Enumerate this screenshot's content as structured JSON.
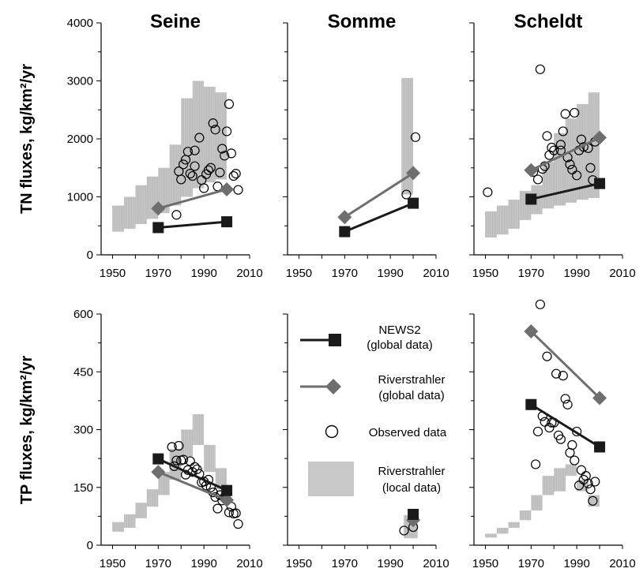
{
  "colors": {
    "news2": "#1a1a1a",
    "riverstrahler_global": "#6e6e6e",
    "local_band": "#c8c8c8",
    "local_band_line": "#a8a8a8"
  },
  "y_labels": [
    "TN fluxes, kg/km²/yr",
    "TP fluxes, kg/km²/yr"
  ],
  "legend": {
    "items": [
      {
        "key": "news2",
        "line1": "NEWS2",
        "line2": "(global data)"
      },
      {
        "key": "riverstrahler_global",
        "line1": "Riverstrahler",
        "line2": "(global data)"
      },
      {
        "key": "observed",
        "line1": "Observed data",
        "line2": ""
      },
      {
        "key": "local",
        "line1": "Riverstrahler",
        "line2": "(local data)"
      }
    ]
  },
  "chart_data": [
    {
      "type": "scatter",
      "title": "Seine",
      "ylabel": "TN fluxes, kg/km²/yr",
      "xlim": [
        1945,
        2010
      ],
      "ylim": [
        0,
        4000
      ],
      "xticks": [
        1950,
        1970,
        1990,
        2010
      ],
      "yticks": [
        0,
        1000,
        2000,
        3000,
        4000
      ],
      "news2": [
        [
          1970,
          470
        ],
        [
          2000,
          570
        ]
      ],
      "riverstrahler_global": [
        [
          1970,
          800
        ],
        [
          2000,
          1130
        ]
      ],
      "observed": [
        [
          1978,
          690
        ],
        [
          1979,
          1440
        ],
        [
          1980,
          1300
        ],
        [
          1981,
          1560
        ],
        [
          1982,
          1640
        ],
        [
          1983,
          1780
        ],
        [
          1984,
          1400
        ],
        [
          1985,
          1360
        ],
        [
          1986,
          1530
        ],
        [
          1986,
          1800
        ],
        [
          1988,
          2020
        ],
        [
          1989,
          1290
        ],
        [
          1990,
          1150
        ],
        [
          1991,
          1390
        ],
        [
          1992,
          1460
        ],
        [
          1993,
          1500
        ],
        [
          1994,
          2270
        ],
        [
          1995,
          2160
        ],
        [
          1996,
          1180
        ],
        [
          1997,
          1420
        ],
        [
          1998,
          1830
        ],
        [
          1999,
          1710
        ],
        [
          2000,
          2130
        ],
        [
          2001,
          2600
        ],
        [
          2002,
          1750
        ],
        [
          2003,
          1360
        ],
        [
          2004,
          1400
        ],
        [
          2005,
          1120
        ]
      ],
      "local_band": {
        "x": [
          1950,
          1955,
          1960,
          1965,
          1970,
          1975,
          1980,
          1985,
          1990,
          1995,
          2000
        ],
        "low": [
          400,
          450,
          530,
          620,
          720,
          850,
          1000,
          1150,
          1250,
          1300,
          1300
        ],
        "high": [
          850,
          1000,
          1200,
          1350,
          1500,
          1900,
          2700,
          3000,
          2900,
          2800,
          2800
        ]
      }
    },
    {
      "type": "scatter",
      "title": "Somme",
      "xlim": [
        1945,
        2010
      ],
      "ylim": [
        0,
        4000
      ],
      "xticks": [
        1950,
        1970,
        1990,
        2010
      ],
      "yticks": [
        0,
        1000,
        2000,
        3000,
        4000
      ],
      "news2": [
        [
          1970,
          400
        ],
        [
          2000,
          890
        ]
      ],
      "riverstrahler_global": [
        [
          1970,
          650
        ],
        [
          2000,
          1410
        ]
      ],
      "observed": [
        [
          1997,
          1040
        ],
        [
          2001,
          2030
        ]
      ],
      "local_band": {
        "x": [
          1995,
          2000
        ],
        "low": [
          1040,
          1040
        ],
        "high": [
          3050,
          3050
        ]
      }
    },
    {
      "type": "scatter",
      "title": "Scheldt",
      "xlim": [
        1945,
        2010
      ],
      "ylim": [
        0,
        4000
      ],
      "xticks": [
        1950,
        1970,
        1990,
        2010
      ],
      "yticks": [
        0,
        1000,
        2000,
        3000,
        4000
      ],
      "news2": [
        [
          1970,
          960
        ],
        [
          2000,
          1230
        ]
      ],
      "riverstrahler_global": [
        [
          1970,
          1460
        ],
        [
          2000,
          2020
        ]
      ],
      "observed": [
        [
          1951,
          1080
        ],
        [
          1971,
          1430
        ],
        [
          1973,
          1300
        ],
        [
          1974,
          3200
        ],
        [
          1975,
          1480
        ],
        [
          1976,
          1530
        ],
        [
          1977,
          2050
        ],
        [
          1978,
          1720
        ],
        [
          1979,
          1850
        ],
        [
          1980,
          1800
        ],
        [
          1983,
          1800
        ],
        [
          1983,
          1900
        ],
        [
          1984,
          2130
        ],
        [
          1985,
          2430
        ],
        [
          1986,
          1680
        ],
        [
          1987,
          1560
        ],
        [
          1988,
          1470
        ],
        [
          1989,
          2450
        ],
        [
          1990,
          1370
        ],
        [
          1991,
          1800
        ],
        [
          1992,
          1990
        ],
        [
          1993,
          1860
        ],
        [
          1995,
          1840
        ],
        [
          1996,
          1500
        ],
        [
          1997,
          1290
        ],
        [
          1998,
          1950
        ]
      ],
      "local_band": {
        "x": [
          1950,
          1955,
          1960,
          1965,
          1970,
          1975,
          1980,
          1985,
          1990,
          1995,
          2000
        ],
        "low": [
          300,
          350,
          450,
          600,
          700,
          800,
          850,
          900,
          950,
          980,
          990
        ],
        "high": [
          750,
          850,
          950,
          1100,
          1200,
          1600,
          2100,
          2350,
          2600,
          2800,
          2900
        ]
      }
    },
    {
      "type": "scatter",
      "title": "",
      "ylabel": "TP fluxes, kg/km²/yr",
      "xlim": [
        1945,
        2010
      ],
      "ylim": [
        0,
        600
      ],
      "xticks": [
        1950,
        1970,
        1990,
        2010
      ],
      "yticks": [
        0,
        150,
        300,
        450,
        600
      ],
      "news2": [
        [
          1970,
          224
        ],
        [
          2000,
          142
        ]
      ],
      "riverstrahler_global": [
        [
          1970,
          190
        ],
        [
          2000,
          117
        ]
      ],
      "observed": [
        [
          1976,
          255
        ],
        [
          1977,
          205
        ],
        [
          1978,
          220
        ],
        [
          1979,
          258
        ],
        [
          1980,
          220
        ],
        [
          1981,
          222
        ],
        [
          1982,
          183
        ],
        [
          1983,
          195
        ],
        [
          1984,
          218
        ],
        [
          1985,
          190
        ],
        [
          1986,
          203
        ],
        [
          1987,
          197
        ],
        [
          1988,
          185
        ],
        [
          1989,
          163
        ],
        [
          1990,
          165
        ],
        [
          1991,
          155
        ],
        [
          1992,
          170
        ],
        [
          1993,
          150
        ],
        [
          1994,
          137
        ],
        [
          1995,
          125
        ],
        [
          1996,
          95
        ],
        [
          1997,
          130
        ],
        [
          1998,
          116
        ],
        [
          1999,
          125
        ],
        [
          2000,
          135
        ],
        [
          2001,
          85
        ],
        [
          2002,
          100
        ],
        [
          2003,
          82
        ],
        [
          2004,
          83
        ],
        [
          2005,
          55
        ]
      ],
      "local_band": {
        "x": [
          1950,
          1955,
          1960,
          1965,
          1970,
          1975,
          1980,
          1985,
          1990,
          1995,
          2000
        ],
        "low": [
          35,
          45,
          70,
          100,
          130,
          170,
          230,
          260,
          190,
          145,
          100
        ],
        "high": [
          60,
          80,
          110,
          145,
          190,
          250,
          300,
          340,
          260,
          200,
          150
        ]
      }
    },
    {
      "type": "scatter",
      "title": "",
      "xlim": [
        1945,
        2010
      ],
      "ylim": [
        0,
        600
      ],
      "xticks": [
        1950,
        1970,
        1990,
        2010
      ],
      "yticks": [
        0,
        150,
        300,
        450,
        600
      ],
      "news2": [
        [
          2000,
          80
        ]
      ],
      "riverstrahler_global": [
        [
          2000,
          65
        ]
      ],
      "observed": [
        [
          1996,
          38
        ],
        [
          2000,
          47
        ]
      ],
      "local_band": {
        "x": [
          1996,
          2002
        ],
        "low": [
          18,
          18
        ],
        "high": [
          78,
          78
        ]
      }
    },
    {
      "type": "scatter",
      "title": "",
      "xlim": [
        1945,
        2010
      ],
      "ylim": [
        0,
        600
      ],
      "xticks": [
        1950,
        1970,
        1990,
        2010
      ],
      "yticks": [
        0,
        150,
        300,
        450,
        600
      ],
      "news2": [
        [
          1970,
          365
        ],
        [
          2000,
          255
        ]
      ],
      "riverstrahler_global": [
        [
          1970,
          555
        ],
        [
          2000,
          382
        ]
      ],
      "observed": [
        [
          1972,
          210
        ],
        [
          1973,
          295
        ],
        [
          1974,
          625
        ],
        [
          1975,
          335
        ],
        [
          1976,
          320
        ],
        [
          1977,
          490
        ],
        [
          1978,
          305
        ],
        [
          1979,
          318
        ],
        [
          1980,
          318
        ],
        [
          1981,
          445
        ],
        [
          1982,
          285
        ],
        [
          1983,
          275
        ],
        [
          1984,
          440
        ],
        [
          1985,
          380
        ],
        [
          1986,
          365
        ],
        [
          1987,
          240
        ],
        [
          1988,
          260
        ],
        [
          1989,
          220
        ],
        [
          1990,
          295
        ],
        [
          1991,
          155
        ],
        [
          1992,
          195
        ],
        [
          1993,
          170
        ],
        [
          1994,
          180
        ],
        [
          1995,
          160
        ],
        [
          1996,
          145
        ],
        [
          1997,
          115
        ],
        [
          1998,
          165
        ]
      ],
      "local_band": {
        "x": [
          1950,
          1955,
          1960,
          1965,
          1970,
          1975,
          1980,
          1985,
          1990,
          1995,
          2000
        ],
        "low": [
          20,
          30,
          45,
          65,
          90,
          130,
          140,
          180,
          140,
          100,
          85
        ],
        "high": [
          30,
          45,
          60,
          90,
          130,
          180,
          200,
          210,
          170,
          130,
          95
        ]
      }
    }
  ]
}
